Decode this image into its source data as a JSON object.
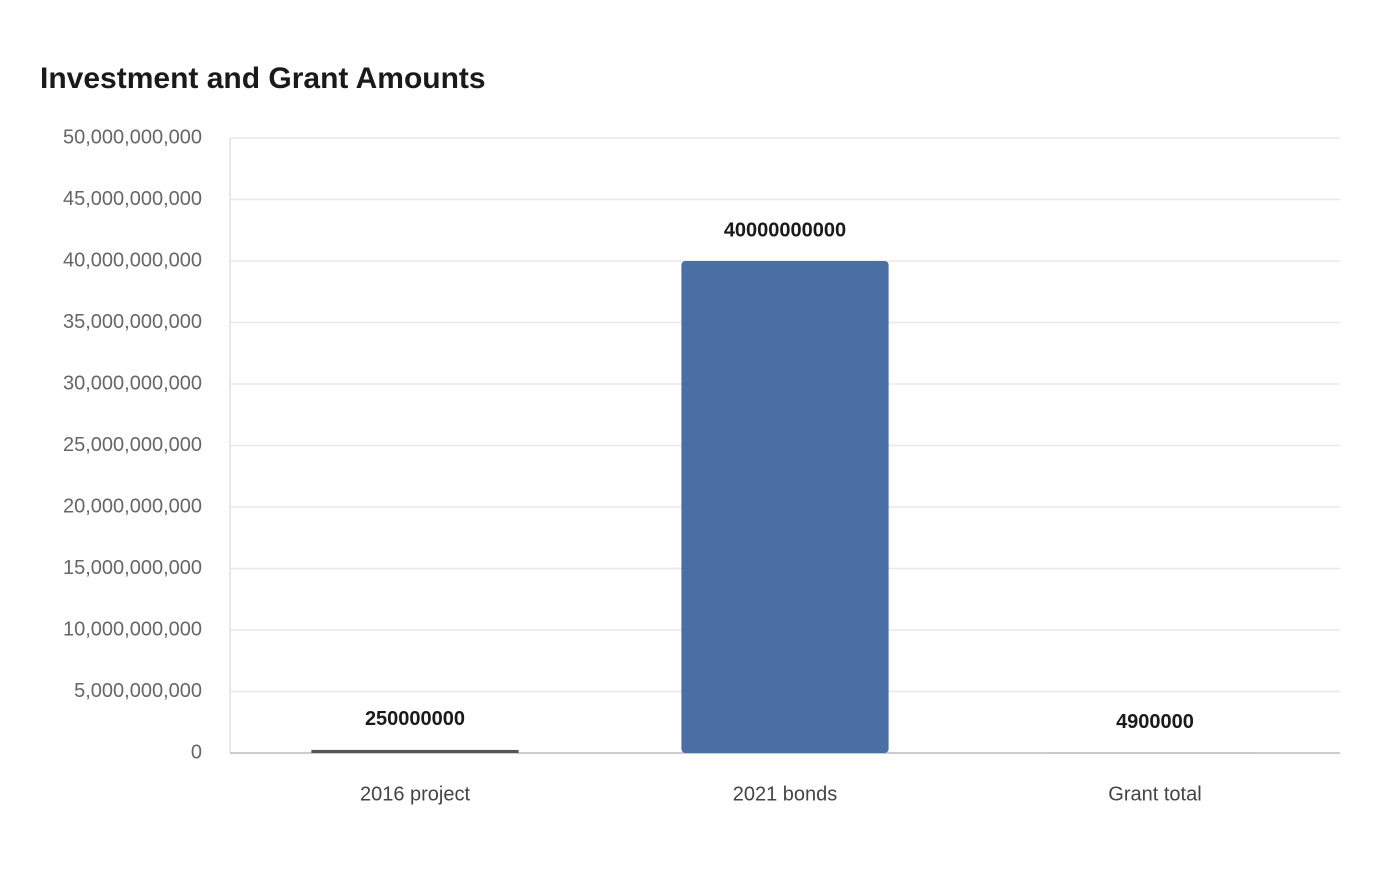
{
  "chart_data": {
    "type": "bar",
    "title": "Investment and Grant Amounts",
    "categories": [
      "2016 project",
      "2021 bonds",
      "Grant total"
    ],
    "values": [
      250000000,
      40000000000,
      4900000
    ],
    "colors": [
      "#555555",
      "#4a6fa5",
      "#8fa8d4"
    ],
    "ylim": [
      0,
      50000000000
    ],
    "yticks": [
      0,
      {
        "value": 5000000000,
        "label": "5,000,000,000"
      },
      {
        "value": 10000000000,
        "label": "10,000,000,000"
      },
      {
        "value": 15000000000,
        "label": "15,000,000,000"
      },
      {
        "value": 20000000000,
        "label": "20,000,000,000"
      },
      {
        "value": 25000000000,
        "label": "25,000,000,000"
      },
      {
        "value": 30000000000,
        "label": "30,000,000,000"
      },
      {
        "value": 35000000000,
        "label": "35,000,000,000"
      },
      {
        "value": 40000000000,
        "label": "40,000,000,000"
      },
      {
        "value": 45000000000,
        "label": "45,000,000,000"
      },
      {
        "value": 50000000000,
        "label": "50,000,000,000"
      }
    ],
    "grid": true
  }
}
